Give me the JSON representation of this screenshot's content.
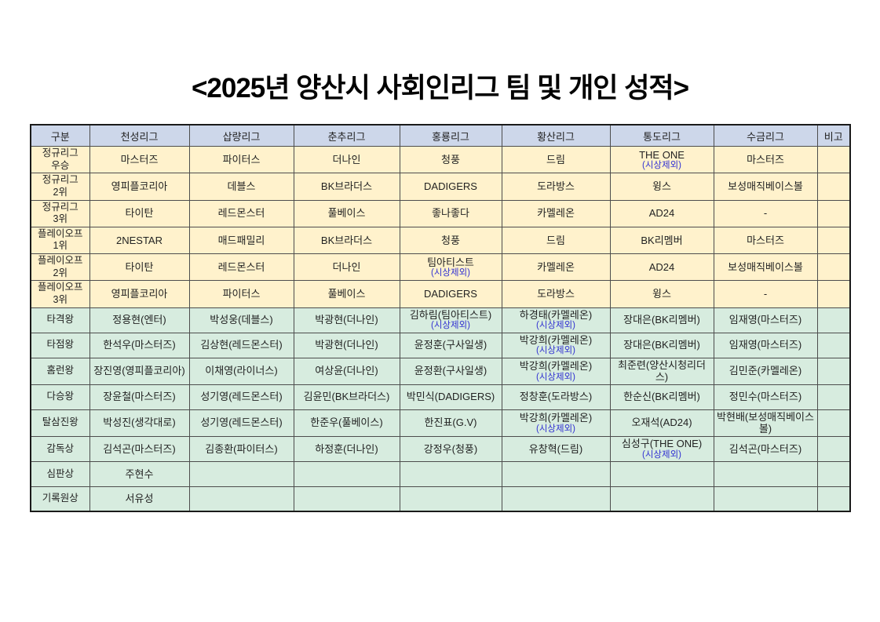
{
  "title": "<2025년 양산시 사회인리그 팀 및 개인 성적>",
  "colors": {
    "header_bg": "#cdd7ea",
    "team_bg": "#fff2cc",
    "individual_bg": "#d7ecdf",
    "note_blue": "#3232d2",
    "border": "#4d4d4d"
  },
  "table": {
    "columns": [
      "구분",
      "천성리그",
      "삽량리그",
      "춘추리그",
      "홍룡리그",
      "황산리그",
      "통도리그",
      "수금리그",
      "비고"
    ],
    "rows": [
      {
        "label": "정규리그\n우승",
        "section": "team",
        "cells": [
          "마스터즈",
          "파이터스",
          "더나인",
          "청풍",
          "드림",
          {
            "text": "THE ONE",
            "note": "(시상제외)"
          },
          "마스터즈",
          ""
        ]
      },
      {
        "label": "정규리그\n2위",
        "section": "team",
        "cells": [
          "영피플코리아",
          "데블스",
          "BK브라더스",
          "DADIGERS",
          "도라방스",
          "윙스",
          "보성매직베이스볼",
          ""
        ]
      },
      {
        "label": "정규리그\n3위",
        "section": "team",
        "cells": [
          "타이탄",
          "레드몬스터",
          "풀베이스",
          "좋나좋다",
          "카멜레온",
          "AD24",
          "-",
          ""
        ]
      },
      {
        "label": "플레이오프\n1위",
        "section": "team",
        "cells": [
          "2NESTAR",
          "매드패밀리",
          "BK브라더스",
          "청풍",
          "드림",
          "BK리멤버",
          "마스터즈",
          ""
        ]
      },
      {
        "label": "플레이오프\n2위",
        "section": "team",
        "cells": [
          "타이탄",
          "레드몬스터",
          "더나인",
          {
            "text": "팀아티스트",
            "note": "(시상제외)"
          },
          "카멜레온",
          "AD24",
          "보성매직베이스볼",
          ""
        ]
      },
      {
        "label": "플레이오프\n3위",
        "section": "team",
        "cells": [
          "영피플코리아",
          "파이터스",
          "풀베이스",
          "DADIGERS",
          "도라방스",
          "윙스",
          "-",
          ""
        ]
      },
      {
        "label": "타격왕",
        "section": "individual",
        "cells": [
          "정용현(엔터)",
          "박성웅(데블스)",
          "박광현(더나인)",
          {
            "text": "김하림(팀아티스트)",
            "note": "(시상제외)"
          },
          {
            "text": "하경태(카멜레온)",
            "note": "(시상제외)"
          },
          "장대은(BK리멤버)",
          "임재영(마스터즈)",
          ""
        ]
      },
      {
        "label": "타점왕",
        "section": "individual",
        "cells": [
          "한석우(마스터즈)",
          "김상현(레드몬스터)",
          "박광현(더나인)",
          "윤정훈(구사일생)",
          {
            "text": "박강희(카멜레온)",
            "note": "(시상제외)"
          },
          "장대은(BK리멤버)",
          "임재영(마스터즈)",
          ""
        ]
      },
      {
        "label": "홈런왕",
        "section": "individual",
        "cells": [
          "장진영(영피플코리아)",
          "이채영(라이너스)",
          "여상윤(더나인)",
          "윤정환(구사일생)",
          {
            "text": "박강희(카멜레온)",
            "note": "(시상제외)"
          },
          "최준련(양산시청리더스)",
          "김민준(카멜레온)",
          ""
        ]
      },
      {
        "label": "다승왕",
        "section": "individual",
        "cells": [
          "장윤철(마스터즈)",
          "성기영(레드몬스터)",
          "김윤민(BK브라더스)",
          "박민식(DADIGERS)",
          "정창훈(도라방스)",
          "한순신(BK리멤버)",
          "정민수(마스터즈)",
          ""
        ]
      },
      {
        "label": "탈삼진왕",
        "section": "individual",
        "cells": [
          "박성진(생각대로)",
          "성기영(레드몬스터)",
          "한준우(풀베이스)",
          "한진표(G.V)",
          {
            "text": "박강희(카멜레온)",
            "note": "(시상제외)"
          },
          "오재석(AD24)",
          "박현배(보성매직베이스볼)",
          ""
        ]
      },
      {
        "label": "감독상",
        "section": "individual",
        "cells": [
          "김석곤(마스터즈)",
          "김종환(파이터스)",
          "하정훈(더나인)",
          "강정우(청풍)",
          "유창혁(드림)",
          {
            "text": "심성구(THE ONE)",
            "note": "(시상제외)"
          },
          "김석곤(마스터즈)",
          ""
        ]
      },
      {
        "label": "심판상",
        "section": "individual",
        "cells": [
          "주현수",
          "",
          "",
          "",
          "",
          "",
          "",
          ""
        ]
      },
      {
        "label": "기록원상",
        "section": "individual",
        "cells": [
          "서유성",
          "",
          "",
          "",
          "",
          "",
          "",
          ""
        ]
      }
    ]
  }
}
